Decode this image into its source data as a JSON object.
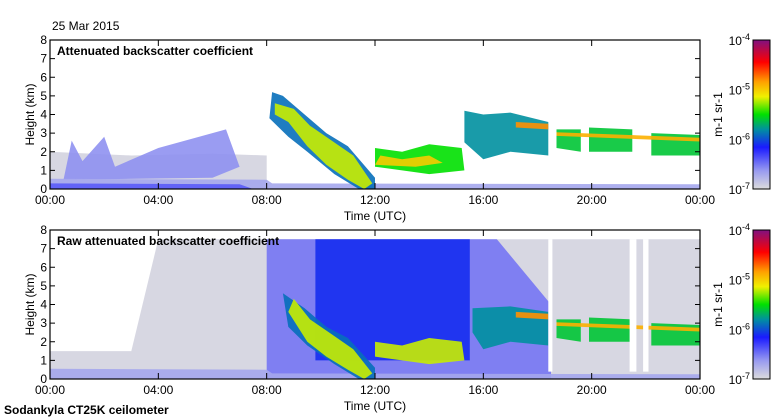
{
  "date_label": "25 Mar 2015",
  "footer": "Sodankyla CT25K ceilometer",
  "chart_data": [
    {
      "type": "heatmap",
      "title": "Attenuated backscatter coefficient",
      "xlabel": "Time (UTC)",
      "ylabel": "Height (km)",
      "xlim": [
        0,
        24
      ],
      "ylim": [
        0,
        8
      ],
      "xticks": [
        "00:00",
        "04:00",
        "08:00",
        "12:00",
        "16:00",
        "20:00",
        "00:00"
      ],
      "yticks": [
        "0",
        "1",
        "2",
        "3",
        "4",
        "5",
        "6",
        "7",
        "8"
      ],
      "colorbar": {
        "label": "m-1 sr-1",
        "ticks": [
          "10-7",
          "10-6",
          "10-5",
          "10-4"
        ],
        "range_log10": [
          -7,
          -4
        ]
      },
      "features": [
        {
          "name": "noise-gray",
          "log10": -6.95,
          "poly": [
            [
              0,
              0
            ],
            [
              0,
              2.0
            ],
            [
              3,
              1.8
            ],
            [
              6,
              1.9
            ],
            [
              8,
              1.8
            ],
            [
              8,
              0
            ]
          ]
        },
        {
          "name": "noise-blue-speckle",
          "log10": -6.6,
          "poly": [
            [
              0.5,
              0.5
            ],
            [
              0.8,
              2.6
            ],
            [
              1.2,
              1.5
            ],
            [
              2,
              2.8
            ],
            [
              2.4,
              1.2
            ],
            [
              4,
              2.2
            ],
            [
              6.5,
              3.2
            ],
            [
              7,
              1.2
            ],
            [
              6,
              0.6
            ]
          ]
        },
        {
          "name": "boundary-layer",
          "log10": -6.7,
          "poly": [
            [
              0,
              0
            ],
            [
              0,
              0.55
            ],
            [
              8,
              0.5
            ],
            [
              8.2,
              0.3
            ],
            [
              24,
              0.25
            ],
            [
              24,
              0
            ]
          ]
        },
        {
          "name": "boundary-layer-core",
          "log10": -6.4,
          "poly": [
            [
              0,
              0
            ],
            [
              0,
              0.3
            ],
            [
              7,
              0.25
            ],
            [
              7.5,
              0
            ],
            [
              0,
              0
            ]
          ]
        },
        {
          "name": "descending-cloud-halo",
          "log10": -5.9,
          "poly": [
            [
              8.2,
              5.2
            ],
            [
              8.6,
              5.0
            ],
            [
              9.4,
              4.0
            ],
            [
              10.2,
              3.0
            ],
            [
              11,
              2.3
            ],
            [
              12,
              0.6
            ],
            [
              12,
              0
            ],
            [
              11.4,
              0
            ],
            [
              10.5,
              0.8
            ],
            [
              9.5,
              2.0
            ],
            [
              8.8,
              2.8
            ],
            [
              8.1,
              3.8
            ]
          ]
        },
        {
          "name": "descending-cloud",
          "log10": -5.2,
          "poly": [
            [
              8.3,
              4.6
            ],
            [
              9.0,
              4.3
            ],
            [
              9.6,
              3.4
            ],
            [
              10.4,
              2.6
            ],
            [
              11.2,
              1.8
            ],
            [
              11.9,
              0.3
            ],
            [
              11.6,
              0
            ],
            [
              11.0,
              0.5
            ],
            [
              10.2,
              1.3
            ],
            [
              9.5,
              2.3
            ],
            [
              8.8,
              3.6
            ],
            [
              8.3,
              4.0
            ]
          ]
        },
        {
          "name": "stratocumulus-1",
          "log10": -5.5,
          "poly": [
            [
              12,
              1.2
            ],
            [
              12,
              2.2
            ],
            [
              13,
              2.0
            ],
            [
              14,
              2.4
            ],
            [
              15.2,
              2.2
            ],
            [
              15.3,
              1.0
            ],
            [
              14,
              0.8
            ],
            [
              13,
              1.0
            ]
          ]
        },
        {
          "name": "stratocumulus-1-core",
          "log10": -5.0,
          "poly": [
            [
              12,
              1.3
            ],
            [
              12.2,
              1.8
            ],
            [
              13,
              1.6
            ],
            [
              14,
              1.8
            ],
            [
              14.5,
              1.4
            ],
            [
              13.5,
              1.2
            ]
          ]
        },
        {
          "name": "mid-cloud-2",
          "log10": -5.8,
          "poly": [
            [
              15.3,
              4.2
            ],
            [
              16,
              4.0
            ],
            [
              17,
              4.1
            ],
            [
              18.4,
              3.6
            ],
            [
              18.4,
              1.8
            ],
            [
              17,
              2.0
            ],
            [
              16,
              1.6
            ],
            [
              15.3,
              2.5
            ]
          ]
        },
        {
          "name": "mid-cloud-2-top",
          "log10": -4.8,
          "poly": [
            [
              17.2,
              3.6
            ],
            [
              18.4,
              3.5
            ],
            [
              18.4,
              3.2
            ],
            [
              17.2,
              3.3
            ]
          ]
        },
        {
          "name": "cloud-3a",
          "log10": -5.6,
          "poly": [
            [
              18.7,
              3.2
            ],
            [
              19.6,
              3.2
            ],
            [
              19.6,
              2.0
            ],
            [
              18.7,
              2.2
            ]
          ]
        },
        {
          "name": "cloud-3b",
          "log10": -5.6,
          "poly": [
            [
              19.9,
              3.3
            ],
            [
              21.5,
              3.2
            ],
            [
              21.5,
              2.0
            ],
            [
              19.9,
              2.0
            ]
          ]
        },
        {
          "name": "cloud-3c",
          "log10": -5.6,
          "poly": [
            [
              22.2,
              3.0
            ],
            [
              24,
              2.9
            ],
            [
              24,
              1.8
            ],
            [
              22.2,
              1.8
            ]
          ]
        },
        {
          "name": "cloud-3-top",
          "log10": -4.9,
          "poly": [
            [
              18.7,
              3.05
            ],
            [
              24,
              2.75
            ],
            [
              24,
              2.55
            ],
            [
              18.7,
              2.85
            ]
          ]
        }
      ]
    },
    {
      "type": "heatmap",
      "title": "Raw attenuated backscatter coefficient",
      "xlabel": "Time (UTC)",
      "ylabel": "Height (km)",
      "xlim": [
        0,
        24
      ],
      "ylim": [
        0,
        8
      ],
      "xticks": [
        "00:00",
        "04:00",
        "08:00",
        "12:00",
        "16:00",
        "20:00",
        "00:00"
      ],
      "yticks": [
        "0",
        "1",
        "2",
        "3",
        "4",
        "5",
        "6",
        "7",
        "8"
      ],
      "colorbar": {
        "label": "m-1 sr-1",
        "ticks": [
          "10-7",
          "10-6",
          "10-5",
          "10-4"
        ],
        "range_log10": [
          -7,
          -4
        ]
      },
      "features": [
        {
          "name": "noise-gray-full",
          "log10": -6.95,
          "poly": [
            [
              0,
              0
            ],
            [
              0,
              1.5
            ],
            [
              3,
              1.5
            ],
            [
              4,
              7.5
            ],
            [
              24,
              7.5
            ],
            [
              24,
              0
            ]
          ]
        },
        {
          "name": "noise-blue-day",
          "log10": -6.5,
          "poly": [
            [
              8,
              0
            ],
            [
              8,
              7.5
            ],
            [
              16.5,
              7.5
            ],
            [
              18.5,
              4
            ],
            [
              18.5,
              0
            ]
          ]
        },
        {
          "name": "noise-green-day",
          "log10": -6.1,
          "poly": [
            [
              9.8,
              1
            ],
            [
              9.8,
              7.5
            ],
            [
              15.5,
              7.5
            ],
            [
              15.5,
              1
            ]
          ]
        },
        {
          "name": "boundary-layer",
          "log10": -6.7,
          "poly": [
            [
              0,
              0
            ],
            [
              0,
              0.55
            ],
            [
              8,
              0.5
            ],
            [
              8.2,
              0.3
            ],
            [
              24,
              0.25
            ],
            [
              24,
              0
            ]
          ]
        },
        {
          "name": "descending-cloud-halo",
          "log10": -5.9,
          "poly": [
            [
              8.6,
              4.6
            ],
            [
              9.4,
              3.8
            ],
            [
              10.2,
              2.8
            ],
            [
              11,
              2.2
            ],
            [
              12,
              0.6
            ],
            [
              12,
              0
            ],
            [
              11.4,
              0
            ],
            [
              10.5,
              0.8
            ],
            [
              9.5,
              1.8
            ],
            [
              8.8,
              2.8
            ]
          ]
        },
        {
          "name": "descending-cloud",
          "log10": -5.2,
          "poly": [
            [
              9.0,
              4.3
            ],
            [
              9.6,
              3.2
            ],
            [
              10.4,
              2.4
            ],
            [
              11.2,
              1.6
            ],
            [
              11.9,
              0.3
            ],
            [
              11.6,
              0
            ],
            [
              11.0,
              0.5
            ],
            [
              10.2,
              1.2
            ],
            [
              9.5,
              2.0
            ],
            [
              8.8,
              3.6
            ]
          ]
        },
        {
          "name": "stratocumulus-1",
          "log10": -5.2,
          "poly": [
            [
              12,
              1.2
            ],
            [
              12,
              2.0
            ],
            [
              13,
              1.8
            ],
            [
              14,
              2.2
            ],
            [
              15.2,
              2.0
            ],
            [
              15.3,
              1.0
            ],
            [
              14,
              0.8
            ],
            [
              13,
              1.0
            ]
          ]
        },
        {
          "name": "mid-cloud-2",
          "log10": -5.8,
          "poly": [
            [
              15.6,
              3.8
            ],
            [
              17,
              3.9
            ],
            [
              18.4,
              3.6
            ],
            [
              18.4,
              1.8
            ],
            [
              17,
              2.0
            ],
            [
              16,
              1.6
            ],
            [
              15.6,
              2.5
            ]
          ]
        },
        {
          "name": "mid-cloud-2-top",
          "log10": -4.8,
          "poly": [
            [
              17.2,
              3.6
            ],
            [
              18.4,
              3.5
            ],
            [
              18.4,
              3.2
            ],
            [
              17.2,
              3.3
            ]
          ]
        },
        {
          "name": "cloud-3a",
          "log10": -5.6,
          "poly": [
            [
              18.7,
              3.2
            ],
            [
              19.6,
              3.2
            ],
            [
              19.6,
              2.0
            ],
            [
              18.7,
              2.2
            ]
          ]
        },
        {
          "name": "cloud-3b",
          "log10": -5.6,
          "poly": [
            [
              19.9,
              3.3
            ],
            [
              21.5,
              3.2
            ],
            [
              21.5,
              2.0
            ],
            [
              19.9,
              2.0
            ]
          ]
        },
        {
          "name": "cloud-3c",
          "log10": -5.6,
          "poly": [
            [
              22.2,
              3.0
            ],
            [
              24,
              2.9
            ],
            [
              24,
              1.8
            ],
            [
              22.2,
              1.8
            ]
          ]
        },
        {
          "name": "cloud-3-top",
          "log10": -4.9,
          "poly": [
            [
              18.7,
              3.05
            ],
            [
              24,
              2.75
            ],
            [
              24,
              2.55
            ],
            [
              18.7,
              2.85
            ]
          ]
        },
        {
          "name": "data-gap-1",
          "log10": null,
          "poly": [
            [
              18.4,
              0.4
            ],
            [
              18.4,
              7.5
            ],
            [
              18.55,
              7.5
            ],
            [
              18.55,
              0.4
            ]
          ]
        },
        {
          "name": "data-gap-2",
          "log10": null,
          "poly": [
            [
              21.4,
              0.4
            ],
            [
              21.4,
              7.5
            ],
            [
              21.65,
              7.5
            ],
            [
              21.65,
              0.4
            ]
          ]
        },
        {
          "name": "data-gap-3",
          "log10": null,
          "poly": [
            [
              21.9,
              0.4
            ],
            [
              21.9,
              7.5
            ],
            [
              22.1,
              7.5
            ],
            [
              22.1,
              0.4
            ]
          ]
        }
      ]
    }
  ]
}
